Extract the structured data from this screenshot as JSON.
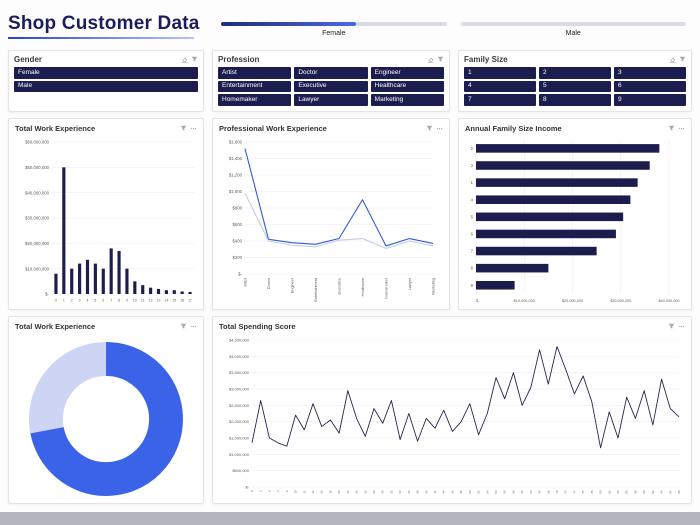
{
  "header": {
    "title": "Shop Customer Data",
    "sliders": [
      {
        "label": "Female",
        "fill_percent": 60
      },
      {
        "label": "Male",
        "fill_percent": 0
      }
    ]
  },
  "icons": {
    "slicer_header": [
      "clear-selections-icon",
      "filter-icon"
    ],
    "chart_header": [
      "filter-icon",
      "more-options-icon"
    ]
  },
  "slicers": {
    "gender": {
      "title": "Gender",
      "items": [
        "Female",
        "Male"
      ]
    },
    "profession": {
      "title": "Profession",
      "items": [
        "Artist",
        "Doctor",
        "Engineer",
        "Entertainment",
        "Executive",
        "Healthcare",
        "Homemaker",
        "Lawyer",
        "Marketing"
      ]
    },
    "family_size": {
      "title": "Family Size",
      "items": [
        "1",
        "2",
        "3",
        "4",
        "5",
        "6",
        "7",
        "8",
        "9"
      ]
    }
  },
  "chart_data": [
    {
      "type": "bar",
      "title": "Total Work Experience",
      "categories": [
        "0",
        "1",
        "2",
        "3",
        "4",
        "5",
        "6",
        "7",
        "8",
        "9",
        "10",
        "11",
        "12",
        "13",
        "14",
        "15",
        "16",
        "17"
      ],
      "values": [
        8000000,
        50000000,
        10000000,
        12000000,
        13500000,
        12000000,
        10000000,
        18000000,
        17000000,
        10000000,
        5000000,
        3500000,
        2500000,
        2000000,
        1500000,
        1500000,
        1000000,
        800000
      ],
      "yticks": [
        0,
        10000000,
        20000000,
        30000000,
        40000000,
        50000000,
        60000000
      ],
      "ylim": [
        0,
        60000000
      ],
      "color": "#1c1d4f"
    },
    {
      "type": "multiline",
      "title": "Professional Work Experience",
      "categories": [
        "Artist",
        "Doctor",
        "Engineer",
        "Entertainment",
        "Executive",
        "Healthcare",
        "Homemaker",
        "Lawyer",
        "Marketing"
      ],
      "series": [
        {
          "name": "series-blue",
          "color": "#2f5bd7",
          "values": [
            1520,
            420,
            380,
            360,
            430,
            900,
            340,
            430,
            370
          ]
        },
        {
          "name": "series-light",
          "color": "#c6cce9",
          "values": [
            980,
            400,
            350,
            330,
            410,
            430,
            310,
            400,
            340
          ]
        }
      ],
      "yticks": [
        0,
        200,
        400,
        600,
        800,
        1000,
        1200,
        1400,
        1600
      ],
      "ylim": [
        0,
        1600
      ]
    },
    {
      "type": "hbar",
      "title": "Annual Family Size Income",
      "categories": [
        "2",
        "3",
        "1",
        "4",
        "5",
        "6",
        "7",
        "8",
        "9"
      ],
      "values": [
        38000000,
        36000000,
        33500000,
        32000000,
        30500000,
        29000000,
        25000000,
        15000000,
        8000000
      ],
      "xticks": [
        0,
        10000000,
        20000000,
        30000000,
        40000000
      ],
      "xlim": [
        0,
        40000000
      ],
      "color": "#1c1d4f"
    },
    {
      "type": "donut",
      "title": "Total Work Experience",
      "slices": [
        {
          "value": 72,
          "color": "#3a63e8"
        },
        {
          "value": 28,
          "color": "#cdd4f4"
        }
      ]
    },
    {
      "type": "line",
      "title": "Total Spending Score",
      "x_labels": [
        "0",
        "2",
        "4",
        "6",
        "8",
        "10",
        "12",
        "14",
        "16",
        "18",
        "20",
        "22",
        "24",
        "26",
        "28",
        "30",
        "32",
        "34",
        "36",
        "38",
        "40",
        "42",
        "44",
        "46",
        "48",
        "50",
        "52",
        "54",
        "56",
        "58",
        "60",
        "62",
        "64",
        "66",
        "68",
        "70",
        "72",
        "74",
        "76",
        "78",
        "80",
        "82",
        "84",
        "86",
        "88",
        "90",
        "92",
        "94",
        "96",
        "98"
      ],
      "values": [
        1350000,
        2650000,
        1500000,
        1350000,
        1250000,
        2200000,
        1750000,
        2550000,
        1850000,
        2050000,
        1650000,
        2950000,
        2100000,
        1550000,
        2400000,
        1950000,
        2650000,
        1450000,
        2250000,
        1400000,
        2100000,
        1800000,
        2350000,
        1700000,
        2000000,
        2550000,
        1600000,
        2250000,
        3350000,
        2700000,
        3500000,
        2500000,
        3050000,
        4200000,
        3150000,
        4300000,
        3600000,
        2850000,
        3400000,
        2600000,
        1200000,
        2300000,
        1500000,
        2750000,
        2100000,
        2950000,
        1900000,
        3300000,
        2400000,
        2150000
      ],
      "yticks": [
        0,
        500000,
        1000000,
        1500000,
        2000000,
        2500000,
        3000000,
        3500000,
        4000000,
        4500000
      ],
      "ylim": [
        0,
        4500000
      ],
      "color": "#27274a"
    }
  ]
}
